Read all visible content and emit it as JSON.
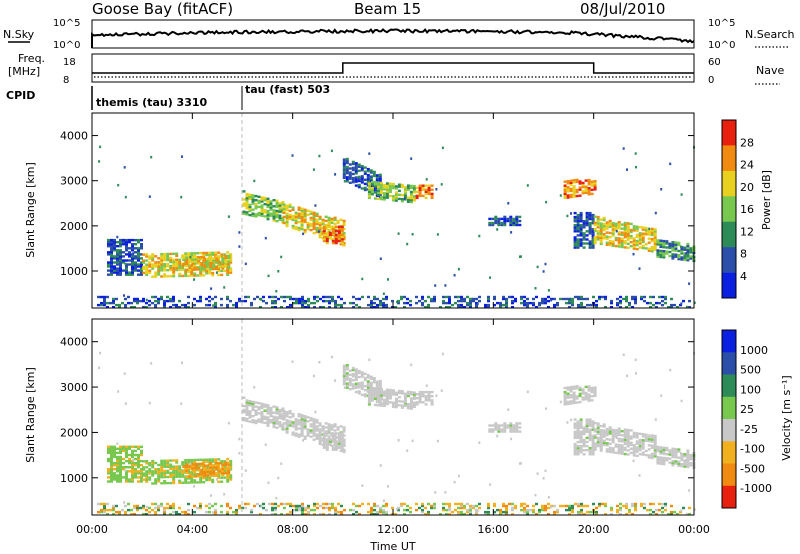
{
  "header": {
    "title": "Goose Bay (fitACF)",
    "beam": "Beam 15",
    "date": "08/Jul/2010"
  },
  "top_panels": {
    "nsky_label": "N.Sky",
    "nsky_ticks": [
      "10^5",
      "10^0"
    ],
    "nsearch_label": "N.Search",
    "nsearch_ticks": [
      "10^5",
      "10^0"
    ],
    "freq_label": "Freq.",
    "freq_unit": "[MHz]",
    "freq_ticks": [
      "18",
      "8"
    ],
    "nave_label": "Nave",
    "nave_ticks": [
      "60",
      "0"
    ],
    "cpid_label": "CPID",
    "cpid_segments": [
      {
        "label": "themis (tau) 3310",
        "start_hour": 0,
        "end_hour": 6
      },
      {
        "label": "tau (fast) 503",
        "start_hour": 6,
        "end_hour": 24
      }
    ]
  },
  "chart_data": [
    {
      "type": "heatmap",
      "name": "power",
      "ylabel": "Slant Range [km]",
      "xlabel": "",
      "ylim": [
        180,
        4500
      ],
      "xlim": [
        0,
        24
      ],
      "yticks": [
        "1000",
        "2000",
        "3000",
        "4000"
      ],
      "colorbar_label": "Power [dB]",
      "colorbar_ticks": [
        "4",
        "8",
        "12",
        "16",
        "20",
        "24",
        "28"
      ],
      "colorbar_colors": [
        "#0b1fe0",
        "#2b4fa8",
        "#2e8b57",
        "#78c850",
        "#e8d020",
        "#f08a10",
        "#e82010"
      ],
      "grid": true
    },
    {
      "type": "heatmap",
      "name": "velocity",
      "ylabel": "Slant Range [km]",
      "xlabel": "Time UT",
      "ylim": [
        180,
        4500
      ],
      "xlim": [
        0,
        24
      ],
      "yticks": [
        "1000",
        "2000",
        "3000",
        "4000"
      ],
      "xticks": [
        "00:00",
        "04:00",
        "08:00",
        "12:00",
        "16:00",
        "20:00",
        "00:00"
      ],
      "colorbar_label": "Velocity [m s⁻¹]",
      "colorbar_ticks": [
        "1000",
        "500",
        "100",
        "25",
        "-25",
        "-100",
        "-500",
        "-1000"
      ],
      "colorbar_colors": [
        "#0b1fe0",
        "#2b4fa8",
        "#2e8b57",
        "#78c850",
        "#c8c8c8",
        "#f0b020",
        "#f08a10",
        "#e82010"
      ],
      "grid": true
    }
  ]
}
